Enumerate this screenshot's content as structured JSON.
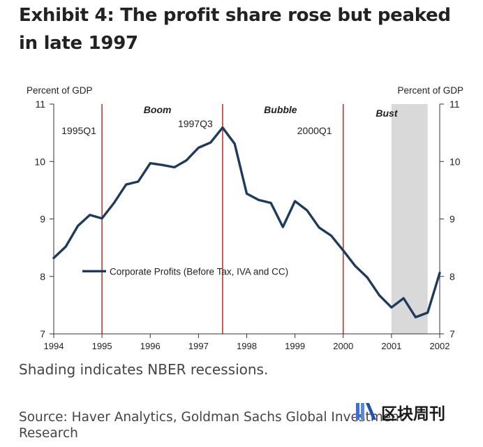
{
  "header": {
    "title": "Exhibit 4: The profit share rose but peaked in late 1997"
  },
  "footer": {
    "note": "Shading indicates NBER recessions.",
    "source": "Source: Haver Analytics, Goldman Sachs Global Investment Research"
  },
  "watermark": {
    "text": "区块周刊"
  },
  "chart_data": {
    "type": "line",
    "title": "Exhibit 4: The profit share rose but peaked in late 1997",
    "ylabel_left": "Percent of GDP",
    "ylabel_right": "Percent of GDP",
    "xlim": [
      1994,
      2002
    ],
    "ylim": [
      7,
      11
    ],
    "x_ticks": [
      "1994",
      "1995",
      "1996",
      "1997",
      "1998",
      "1999",
      "2000",
      "2001",
      "2002"
    ],
    "y_ticks": [
      "7",
      "8",
      "9",
      "10",
      "11"
    ],
    "series": [
      {
        "name": "Corporate Profits (Before Tax, IVA and CC)",
        "color": "#1f3b5c",
        "x": [
          1994.0,
          1994.25,
          1994.5,
          1994.75,
          1995.0,
          1995.25,
          1995.5,
          1995.75,
          1996.0,
          1996.25,
          1996.5,
          1996.75,
          1997.0,
          1997.25,
          1997.5,
          1997.75,
          1998.0,
          1998.25,
          1998.5,
          1998.75,
          1999.0,
          1999.25,
          1999.5,
          1999.75,
          2000.0,
          2000.25,
          2000.5,
          2000.75,
          2001.0,
          2001.25,
          2001.5,
          2001.75,
          2002.0
        ],
        "values": [
          8.32,
          8.52,
          8.88,
          9.07,
          9.01,
          9.28,
          9.6,
          9.65,
          9.97,
          9.94,
          9.9,
          10.02,
          10.24,
          10.33,
          10.59,
          10.31,
          9.44,
          9.33,
          9.28,
          8.86,
          9.31,
          9.15,
          8.85,
          8.71,
          8.45,
          8.18,
          7.98,
          7.67,
          7.46,
          7.62,
          7.29,
          7.37,
          8.06
        ]
      }
    ],
    "vertical_markers": [
      {
        "x": 1995.0,
        "label": "1995Q1",
        "color": "#c0392b"
      },
      {
        "x": 1997.5,
        "label": "1997Q3",
        "color": "#c0392b"
      },
      {
        "x": 2000.0,
        "label": "2000Q1",
        "color": "#c0392b"
      }
    ],
    "recession_shading": [
      {
        "from": 2001.0,
        "to": 2001.75,
        "color": "#d9d9d9"
      }
    ],
    "period_labels": [
      {
        "text": "Boom",
        "x": 1996.15
      },
      {
        "text": "Bubble",
        "x": 1998.7
      },
      {
        "text": "Bust",
        "x": 2000.9
      }
    ],
    "legend_position": "lower-left"
  }
}
